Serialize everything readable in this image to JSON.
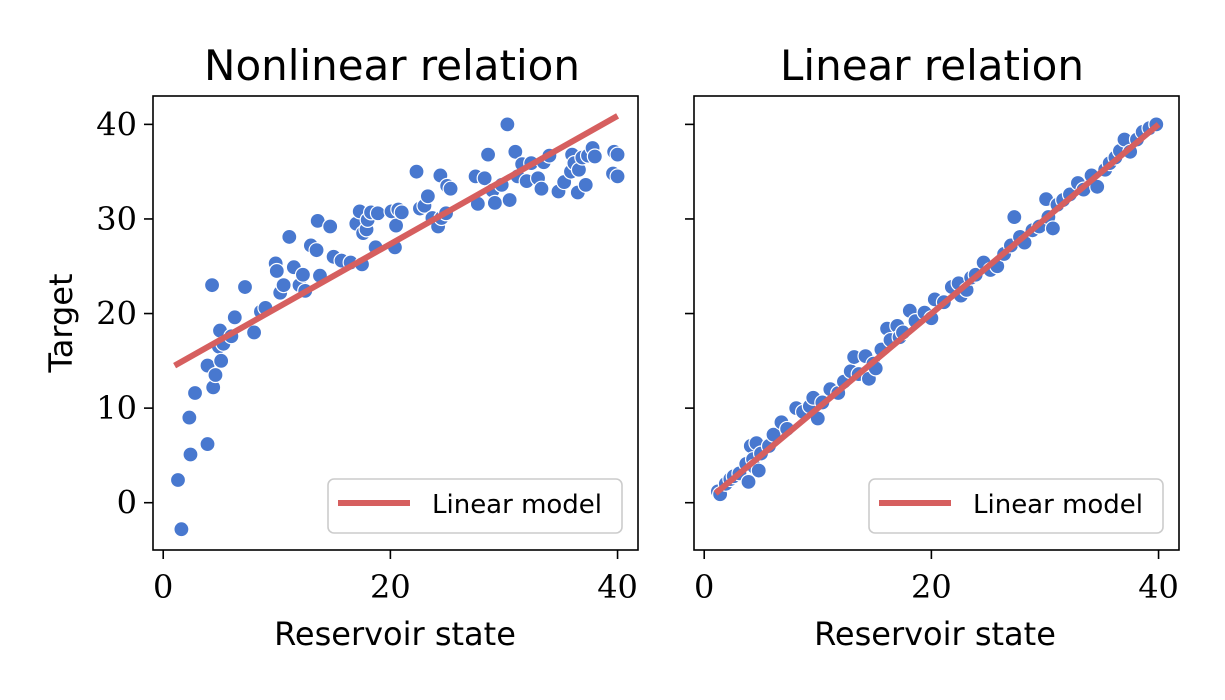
{
  "chart_data": [
    {
      "type": "scatter",
      "title": "Nonlinear relation",
      "xlabel": "Reservoir state",
      "ylabel": "Target",
      "xlim": [
        -0.9,
        41.8
      ],
      "ylim": [
        -5,
        43
      ],
      "xticks": [
        0,
        20,
        40
      ],
      "yticks": [
        0,
        10,
        20,
        30,
        40
      ],
      "grid": false,
      "legend": {
        "position": "lower-right",
        "entries": [
          "Linear model"
        ]
      },
      "colors": {
        "points": "#4878cf",
        "line": "#d65f5f"
      },
      "series": [
        {
          "name": "",
          "kind": "points",
          "points": [
            [
              1.3,
              2.4
            ],
            [
              1.6,
              -2.8
            ],
            [
              2.3,
              9.0
            ],
            [
              2.4,
              5.1
            ],
            [
              2.8,
              11.6
            ],
            [
              3.9,
              6.2
            ],
            [
              3.9,
              14.5
            ],
            [
              4.3,
              23.0
            ],
            [
              4.4,
              12.2
            ],
            [
              4.6,
              13.5
            ],
            [
              4.9,
              16.5
            ],
            [
              5.0,
              18.2
            ],
            [
              5.1,
              15.0
            ],
            [
              5.3,
              16.8
            ],
            [
              6.0,
              17.6
            ],
            [
              6.3,
              19.6
            ],
            [
              7.2,
              22.8
            ],
            [
              8.0,
              18.0
            ],
            [
              8.6,
              20.2
            ],
            [
              9.0,
              20.6
            ],
            [
              9.9,
              25.3
            ],
            [
              10.0,
              24.5
            ],
            [
              10.3,
              22.2
            ],
            [
              10.6,
              23.0
            ],
            [
              11.1,
              28.1
            ],
            [
              11.5,
              24.9
            ],
            [
              12.0,
              23.0
            ],
            [
              12.3,
              24.1
            ],
            [
              12.5,
              22.4
            ],
            [
              13.0,
              27.2
            ],
            [
              13.5,
              26.7
            ],
            [
              13.6,
              29.8
            ],
            [
              13.8,
              24.0
            ],
            [
              14.7,
              29.2
            ],
            [
              15.0,
              26.0
            ],
            [
              15.7,
              25.6
            ],
            [
              16.5,
              25.4
            ],
            [
              17.0,
              29.5
            ],
            [
              17.3,
              30.8
            ],
            [
              17.5,
              25.2
            ],
            [
              17.6,
              28.5
            ],
            [
              17.9,
              28.9
            ],
            [
              18.0,
              29.9
            ],
            [
              18.3,
              30.7
            ],
            [
              18.7,
              27.0
            ],
            [
              18.9,
              30.6
            ],
            [
              20.1,
              30.8
            ],
            [
              20.4,
              27.0
            ],
            [
              20.5,
              29.3
            ],
            [
              20.7,
              31.0
            ],
            [
              21.0,
              30.7
            ],
            [
              22.3,
              35.0
            ],
            [
              22.6,
              31.1
            ],
            [
              23.0,
              31.4
            ],
            [
              23.3,
              32.4
            ],
            [
              23.7,
              30.1
            ],
            [
              24.2,
              29.2
            ],
            [
              24.4,
              34.6
            ],
            [
              24.5,
              30.1
            ],
            [
              24.9,
              30.6
            ],
            [
              25.0,
              33.5
            ],
            [
              25.3,
              33.2
            ],
            [
              27.5,
              34.5
            ],
            [
              27.7,
              31.6
            ],
            [
              28.3,
              34.3
            ],
            [
              28.6,
              36.8
            ],
            [
              29.0,
              33.0
            ],
            [
              29.2,
              31.7
            ],
            [
              29.8,
              33.6
            ],
            [
              30.3,
              40.0
            ],
            [
              30.5,
              32.0
            ],
            [
              31.0,
              37.1
            ],
            [
              31.2,
              34.5
            ],
            [
              31.6,
              35.8
            ],
            [
              32.0,
              34.0
            ],
            [
              32.4,
              35.9
            ],
            [
              33.0,
              34.3
            ],
            [
              33.3,
              33.2
            ],
            [
              33.5,
              36.0
            ],
            [
              34.0,
              36.7
            ],
            [
              34.8,
              32.9
            ],
            [
              35.3,
              33.9
            ],
            [
              35.9,
              35.0
            ],
            [
              36.0,
              36.8
            ],
            [
              36.2,
              35.9
            ],
            [
              36.5,
              32.8
            ],
            [
              36.6,
              35.2
            ],
            [
              36.9,
              36.5
            ],
            [
              37.2,
              33.6
            ],
            [
              37.4,
              36.7
            ],
            [
              37.8,
              37.5
            ],
            [
              38.0,
              36.6
            ],
            [
              39.6,
              34.8
            ],
            [
              39.7,
              37.1
            ],
            [
              40.0,
              36.8
            ],
            [
              40.0,
              34.5
            ]
          ]
        },
        {
          "name": "Linear model",
          "kind": "line",
          "points": [
            [
              1,
              14.5
            ],
            [
              40,
              40.9
            ]
          ]
        }
      ]
    },
    {
      "type": "scatter",
      "title": "Linear relation",
      "xlabel": "Reservoir state",
      "ylabel": "",
      "xlim": [
        -0.9,
        41.8
      ],
      "ylim": [
        -5,
        43
      ],
      "xticks": [
        0,
        20,
        40
      ],
      "yticks": [
        0,
        10,
        20,
        30,
        40
      ],
      "show_ytick_labels": false,
      "grid": false,
      "legend": {
        "position": "lower-right",
        "entries": [
          "Linear model"
        ]
      },
      "colors": {
        "points": "#4878cf",
        "line": "#d65f5f"
      },
      "series": [
        {
          "name": "",
          "kind": "points",
          "points": [
            [
              1.2,
              1.2
            ],
            [
              1.4,
              0.9
            ],
            [
              1.9,
              2.0
            ],
            [
              2.3,
              2.5
            ],
            [
              2.6,
              2.8
            ],
            [
              3.1,
              3.1
            ],
            [
              3.7,
              4.1
            ],
            [
              3.9,
              2.2
            ],
            [
              4.1,
              6.0
            ],
            [
              4.3,
              4.6
            ],
            [
              4.4,
              3.8
            ],
            [
              4.6,
              6.3
            ],
            [
              4.8,
              3.4
            ],
            [
              5.0,
              5.2
            ],
            [
              5.7,
              6.0
            ],
            [
              6.1,
              7.2
            ],
            [
              6.8,
              8.5
            ],
            [
              7.3,
              7.8
            ],
            [
              8.1,
              10.0
            ],
            [
              8.7,
              9.6
            ],
            [
              9.3,
              10.2
            ],
            [
              9.6,
              11.1
            ],
            [
              10.0,
              8.9
            ],
            [
              10.4,
              10.6
            ],
            [
              11.1,
              12.0
            ],
            [
              11.8,
              11.6
            ],
            [
              12.3,
              12.8
            ],
            [
              12.9,
              13.9
            ],
            [
              13.2,
              15.4
            ],
            [
              13.6,
              13.6
            ],
            [
              14.2,
              15.5
            ],
            [
              14.5,
              13.1
            ],
            [
              14.9,
              14.7
            ],
            [
              15.1,
              14.2
            ],
            [
              15.6,
              16.2
            ],
            [
              16.1,
              18.4
            ],
            [
              16.4,
              17.2
            ],
            [
              17.0,
              18.7
            ],
            [
              17.2,
              17.5
            ],
            [
              17.5,
              18.0
            ],
            [
              18.1,
              20.3
            ],
            [
              18.6,
              19.2
            ],
            [
              19.4,
              20.1
            ],
            [
              20.0,
              19.5
            ],
            [
              20.3,
              21.5
            ],
            [
              21.1,
              21.2
            ],
            [
              21.8,
              22.8
            ],
            [
              22.4,
              23.2
            ],
            [
              22.6,
              21.9
            ],
            [
              23.1,
              22.5
            ],
            [
              23.5,
              23.8
            ],
            [
              23.9,
              24.1
            ],
            [
              24.6,
              25.4
            ],
            [
              25.2,
              24.6
            ],
            [
              25.8,
              25.0
            ],
            [
              26.4,
              26.3
            ],
            [
              27.0,
              27.2
            ],
            [
              27.3,
              30.2
            ],
            [
              27.8,
              28.1
            ],
            [
              28.2,
              27.5
            ],
            [
              28.9,
              28.8
            ],
            [
              29.5,
              29.2
            ],
            [
              30.1,
              32.1
            ],
            [
              30.3,
              30.2
            ],
            [
              30.7,
              29.0
            ],
            [
              31.1,
              31.5
            ],
            [
              31.6,
              32.0
            ],
            [
              32.2,
              32.6
            ],
            [
              32.9,
              33.8
            ],
            [
              33.4,
              33.1
            ],
            [
              34.1,
              34.6
            ],
            [
              34.6,
              33.4
            ],
            [
              35.3,
              35.2
            ],
            [
              35.7,
              35.9
            ],
            [
              36.2,
              36.5
            ],
            [
              36.6,
              37.2
            ],
            [
              37.0,
              38.4
            ],
            [
              37.5,
              37.1
            ],
            [
              38.1,
              38.4
            ],
            [
              38.6,
              39.2
            ],
            [
              39.2,
              39.6
            ],
            [
              39.8,
              40.0
            ]
          ]
        },
        {
          "name": "Linear model",
          "kind": "line",
          "points": [
            [
              1,
              1
            ],
            [
              40,
              40
            ]
          ]
        }
      ]
    }
  ]
}
